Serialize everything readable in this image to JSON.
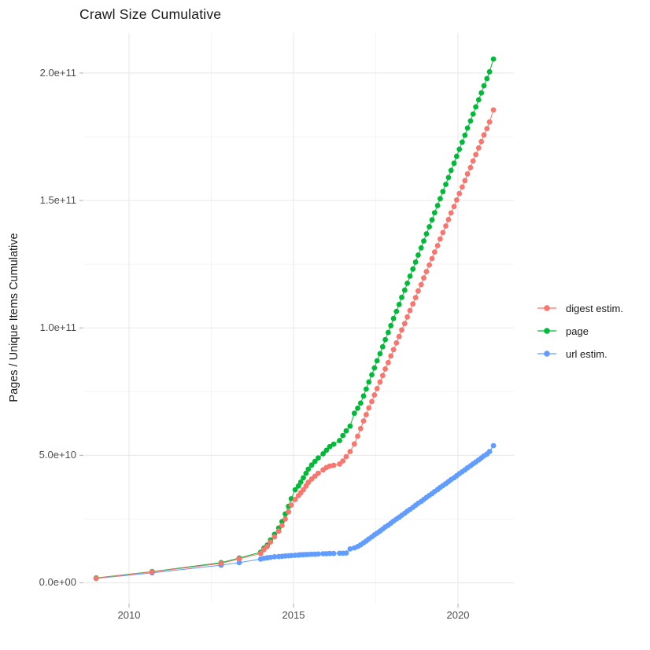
{
  "title": "Crawl Size Cumulative",
  "y_axis": {
    "label": "Pages / Unique Items Cumulative",
    "ticks": [
      {
        "label": "0.0e+00",
        "value": 0
      },
      {
        "label": "5.0e+10",
        "value": 50
      },
      {
        "label": "1.0e+11",
        "value": 100
      },
      {
        "label": "1.5e+11",
        "value": 150
      },
      {
        "label": "2.0e+11",
        "value": 200
      }
    ],
    "minor_values": [
      25,
      75,
      125,
      175
    ]
  },
  "x_axis": {
    "ticks": [
      {
        "label": "2010",
        "value": 2010
      },
      {
        "label": "2015",
        "value": 2015
      },
      {
        "label": "2020",
        "value": 2020
      }
    ],
    "minor_values": [
      2012.5,
      2017.5
    ]
  },
  "legend": {
    "items": [
      {
        "label": "digest estim.",
        "color": "#F8766D",
        "series": "digest estim."
      },
      {
        "label": "page",
        "color": "#00BA38",
        "series": "page"
      },
      {
        "label": "url estim.",
        "color": "#619CFF",
        "series": "url estim."
      }
    ]
  },
  "colors": {
    "digest": "#F8766D",
    "page": "#00BA38",
    "url": "#619CFF",
    "grid_major": "#EBEBEB",
    "grid_minor": "#F0F0F0",
    "tick_mark": "#BBBBBB",
    "axis_text": "#4D4D4D"
  },
  "chart_data": {
    "type": "line",
    "title": "Crawl Size Cumulative",
    "xlabel": "",
    "ylabel": "Pages / Unique Items Cumulative",
    "x_unit": "year (decimal)",
    "y_unit": "count, values in billions (1e9)",
    "xlim": [
      2008.4,
      2021.7
    ],
    "ylim": [
      0,
      216
    ],
    "grid": true,
    "legend_position": "right",
    "marker": "point",
    "series": [
      {
        "name": "page",
        "color": "#00BA38",
        "points": [
          [
            2009.0,
            1.9
          ],
          [
            2010.7,
            4.4
          ],
          [
            2012.8,
            7.9
          ],
          [
            2013.35,
            9.7
          ],
          [
            2014.0,
            12.0
          ],
          [
            2014.1,
            13.6
          ],
          [
            2014.2,
            14.8
          ],
          [
            2014.3,
            16.8
          ],
          [
            2014.42,
            19.0
          ],
          [
            2014.55,
            21.5
          ],
          [
            2014.65,
            24.0
          ],
          [
            2014.75,
            27.0
          ],
          [
            2014.85,
            30.0
          ],
          [
            2014.93,
            33.0
          ],
          [
            2015.05,
            36.5
          ],
          [
            2015.15,
            38.0
          ],
          [
            2015.22,
            39.5
          ],
          [
            2015.3,
            41.2
          ],
          [
            2015.38,
            43.0
          ],
          [
            2015.45,
            44.6
          ],
          [
            2015.55,
            46.2
          ],
          [
            2015.65,
            47.6
          ],
          [
            2015.75,
            49.0
          ],
          [
            2015.9,
            50.6
          ],
          [
            2016.0,
            52.0
          ],
          [
            2016.1,
            53.4
          ],
          [
            2016.22,
            54.4
          ],
          [
            2016.4,
            55.8
          ],
          [
            2016.5,
            57.8
          ],
          [
            2016.6,
            59.6
          ],
          [
            2016.72,
            61.5
          ],
          [
            2016.85,
            66.5
          ],
          [
            2016.95,
            68.5
          ],
          [
            2017.04,
            70.5
          ],
          [
            2017.13,
            73.3
          ],
          [
            2017.21,
            76.0
          ],
          [
            2017.29,
            78.8
          ],
          [
            2017.38,
            81.6
          ],
          [
            2017.46,
            84.3
          ],
          [
            2017.54,
            87.1
          ],
          [
            2017.63,
            89.9
          ],
          [
            2017.71,
            92.6
          ],
          [
            2017.79,
            95.4
          ],
          [
            2017.88,
            98.2
          ],
          [
            2017.96,
            100.9
          ],
          [
            2018.04,
            103.7
          ],
          [
            2018.13,
            106.5
          ],
          [
            2018.21,
            109.2
          ],
          [
            2018.29,
            112.0
          ],
          [
            2018.38,
            114.8
          ],
          [
            2018.46,
            117.5
          ],
          [
            2018.54,
            120.3
          ],
          [
            2018.63,
            123.1
          ],
          [
            2018.71,
            125.8
          ],
          [
            2018.79,
            128.6
          ],
          [
            2018.88,
            131.4
          ],
          [
            2018.96,
            134.1
          ],
          [
            2019.04,
            136.9
          ],
          [
            2019.13,
            139.7
          ],
          [
            2019.21,
            142.4
          ],
          [
            2019.29,
            145.2
          ],
          [
            2019.38,
            148.0
          ],
          [
            2019.46,
            150.7
          ],
          [
            2019.54,
            153.5
          ],
          [
            2019.63,
            156.3
          ],
          [
            2019.71,
            159.0
          ],
          [
            2019.79,
            161.8
          ],
          [
            2019.88,
            164.6
          ],
          [
            2019.96,
            167.3
          ],
          [
            2020.04,
            170.1
          ],
          [
            2020.13,
            172.9
          ],
          [
            2020.21,
            175.6
          ],
          [
            2020.29,
            178.4
          ],
          [
            2020.38,
            181.2
          ],
          [
            2020.46,
            183.9
          ],
          [
            2020.54,
            186.7
          ],
          [
            2020.63,
            189.5
          ],
          [
            2020.71,
            192.2
          ],
          [
            2020.79,
            195.0
          ],
          [
            2020.88,
            197.8
          ],
          [
            2020.96,
            200.5
          ],
          [
            2021.08,
            205.5
          ]
        ]
      },
      {
        "name": "url estim.",
        "color": "#619CFF",
        "points": [
          [
            2009.0,
            1.7
          ],
          [
            2010.7,
            3.9
          ],
          [
            2012.8,
            6.9
          ],
          [
            2013.35,
            7.9
          ],
          [
            2014.0,
            9.3
          ],
          [
            2014.1,
            9.6
          ],
          [
            2014.2,
            9.8
          ],
          [
            2014.3,
            10.0
          ],
          [
            2014.42,
            10.2
          ],
          [
            2014.55,
            10.3
          ],
          [
            2014.65,
            10.4
          ],
          [
            2014.75,
            10.5
          ],
          [
            2014.85,
            10.6
          ],
          [
            2014.93,
            10.7
          ],
          [
            2015.05,
            10.8
          ],
          [
            2015.15,
            10.9
          ],
          [
            2015.22,
            11.0
          ],
          [
            2015.3,
            11.0
          ],
          [
            2015.38,
            11.1
          ],
          [
            2015.45,
            11.1
          ],
          [
            2015.55,
            11.2
          ],
          [
            2015.65,
            11.2
          ],
          [
            2015.75,
            11.3
          ],
          [
            2015.9,
            11.4
          ],
          [
            2016.0,
            11.4
          ],
          [
            2016.1,
            11.5
          ],
          [
            2016.22,
            11.5
          ],
          [
            2016.4,
            11.6
          ],
          [
            2016.5,
            11.6
          ],
          [
            2016.6,
            11.7
          ],
          [
            2016.72,
            13.3
          ],
          [
            2016.85,
            13.7
          ],
          [
            2016.95,
            14.2
          ],
          [
            2017.04,
            14.9
          ],
          [
            2017.13,
            15.7
          ],
          [
            2017.21,
            16.4
          ],
          [
            2017.29,
            17.2
          ],
          [
            2017.38,
            18.0
          ],
          [
            2017.46,
            18.8
          ],
          [
            2017.54,
            19.5
          ],
          [
            2017.63,
            20.3
          ],
          [
            2017.71,
            21.1
          ],
          [
            2017.79,
            21.9
          ],
          [
            2017.88,
            22.6
          ],
          [
            2017.96,
            23.4
          ],
          [
            2018.04,
            24.2
          ],
          [
            2018.13,
            25.0
          ],
          [
            2018.21,
            25.7
          ],
          [
            2018.29,
            26.5
          ],
          [
            2018.38,
            27.3
          ],
          [
            2018.46,
            28.1
          ],
          [
            2018.54,
            28.8
          ],
          [
            2018.63,
            29.6
          ],
          [
            2018.71,
            30.4
          ],
          [
            2018.79,
            31.2
          ],
          [
            2018.88,
            31.9
          ],
          [
            2018.96,
            32.7
          ],
          [
            2019.04,
            33.5
          ],
          [
            2019.13,
            34.3
          ],
          [
            2019.21,
            35.0
          ],
          [
            2019.29,
            35.8
          ],
          [
            2019.38,
            36.6
          ],
          [
            2019.46,
            37.4
          ],
          [
            2019.54,
            38.1
          ],
          [
            2019.63,
            38.9
          ],
          [
            2019.71,
            39.7
          ],
          [
            2019.79,
            40.5
          ],
          [
            2019.88,
            41.2
          ],
          [
            2019.96,
            42.0
          ],
          [
            2020.04,
            42.8
          ],
          [
            2020.13,
            43.6
          ],
          [
            2020.21,
            44.3
          ],
          [
            2020.29,
            45.1
          ],
          [
            2020.38,
            45.9
          ],
          [
            2020.46,
            46.7
          ],
          [
            2020.54,
            47.4
          ],
          [
            2020.63,
            48.2
          ],
          [
            2020.71,
            49.0
          ],
          [
            2020.79,
            49.8
          ],
          [
            2020.88,
            50.5
          ],
          [
            2020.96,
            51.5
          ],
          [
            2021.08,
            53.8
          ]
        ]
      },
      {
        "name": "digest estim.",
        "color": "#F8766D",
        "points": [
          [
            2009.0,
            1.8
          ],
          [
            2010.7,
            4.3
          ],
          [
            2012.8,
            7.6
          ],
          [
            2013.35,
            9.4
          ],
          [
            2014.0,
            11.5
          ],
          [
            2014.1,
            13.0
          ],
          [
            2014.2,
            14.2
          ],
          [
            2014.3,
            16.0
          ],
          [
            2014.42,
            18.0
          ],
          [
            2014.55,
            20.3
          ],
          [
            2014.65,
            22.5
          ],
          [
            2014.75,
            25.0
          ],
          [
            2014.85,
            27.8
          ],
          [
            2014.93,
            30.5
          ],
          [
            2015.05,
            32.7
          ],
          [
            2015.15,
            34.2
          ],
          [
            2015.22,
            35.3
          ],
          [
            2015.3,
            36.5
          ],
          [
            2015.38,
            38.0
          ],
          [
            2015.45,
            39.4
          ],
          [
            2015.55,
            40.7
          ],
          [
            2015.65,
            41.8
          ],
          [
            2015.75,
            43.0
          ],
          [
            2015.9,
            44.3
          ],
          [
            2016.0,
            45.2
          ],
          [
            2016.1,
            45.8
          ],
          [
            2016.22,
            46.1
          ],
          [
            2016.4,
            46.6
          ],
          [
            2016.5,
            47.8
          ],
          [
            2016.6,
            49.5
          ],
          [
            2016.72,
            51.5
          ],
          [
            2016.85,
            54.5
          ],
          [
            2016.95,
            57.5
          ],
          [
            2017.04,
            60.5
          ],
          [
            2017.13,
            63.5
          ],
          [
            2017.21,
            66.0
          ],
          [
            2017.29,
            68.6
          ],
          [
            2017.38,
            71.1
          ],
          [
            2017.46,
            73.7
          ],
          [
            2017.54,
            76.2
          ],
          [
            2017.63,
            78.8
          ],
          [
            2017.71,
            81.3
          ],
          [
            2017.79,
            83.9
          ],
          [
            2017.88,
            86.4
          ],
          [
            2017.96,
            89.0
          ],
          [
            2018.04,
            91.5
          ],
          [
            2018.13,
            94.1
          ],
          [
            2018.21,
            96.6
          ],
          [
            2018.29,
            99.2
          ],
          [
            2018.38,
            101.7
          ],
          [
            2018.46,
            104.3
          ],
          [
            2018.54,
            106.8
          ],
          [
            2018.63,
            109.4
          ],
          [
            2018.71,
            111.9
          ],
          [
            2018.79,
            114.5
          ],
          [
            2018.88,
            117.0
          ],
          [
            2018.96,
            119.6
          ],
          [
            2019.04,
            122.1
          ],
          [
            2019.13,
            124.7
          ],
          [
            2019.21,
            127.2
          ],
          [
            2019.29,
            129.8
          ],
          [
            2019.38,
            132.3
          ],
          [
            2019.46,
            134.9
          ],
          [
            2019.54,
            137.4
          ],
          [
            2019.63,
            140.0
          ],
          [
            2019.71,
            142.5
          ],
          [
            2019.79,
            145.1
          ],
          [
            2019.88,
            147.6
          ],
          [
            2019.96,
            150.2
          ],
          [
            2020.04,
            152.7
          ],
          [
            2020.13,
            155.3
          ],
          [
            2020.21,
            157.8
          ],
          [
            2020.29,
            160.4
          ],
          [
            2020.38,
            162.9
          ],
          [
            2020.46,
            165.5
          ],
          [
            2020.54,
            168.0
          ],
          [
            2020.63,
            170.6
          ],
          [
            2020.71,
            173.1
          ],
          [
            2020.79,
            175.7
          ],
          [
            2020.88,
            178.2
          ],
          [
            2020.96,
            180.8
          ],
          [
            2021.08,
            185.5
          ]
        ]
      }
    ]
  }
}
